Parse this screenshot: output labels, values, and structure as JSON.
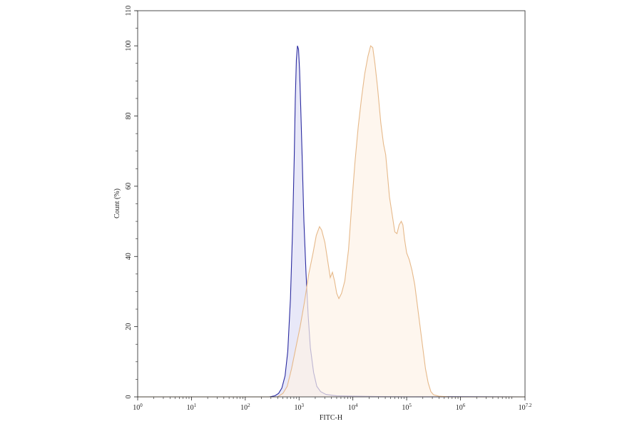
{
  "chart_data": {
    "type": "area",
    "xlabel": "FITC-H",
    "ylabel": "Count (%)",
    "xscale": "log",
    "xlim_log10": [
      0,
      7.2
    ],
    "ylim": [
      0,
      110
    ],
    "grid": false,
    "legend": "none",
    "x_ticks": [
      {
        "exp": 0,
        "base": "10",
        "sup": "0"
      },
      {
        "exp": 1,
        "base": "10",
        "sup": "1"
      },
      {
        "exp": 2,
        "base": "10",
        "sup": "2"
      },
      {
        "exp": 3,
        "base": "10",
        "sup": "3"
      },
      {
        "exp": 4,
        "base": "10",
        "sup": "4"
      },
      {
        "exp": 5,
        "base": "10",
        "sup": "5"
      },
      {
        "exp": 6,
        "base": "10",
        "sup": "6"
      },
      {
        "exp": 7.2,
        "base": "10",
        "sup": "7.2"
      }
    ],
    "y_ticks": [
      {
        "value": 0,
        "label": "0"
      },
      {
        "value": 20,
        "label": "20"
      },
      {
        "value": 40,
        "label": "40"
      },
      {
        "value": 60,
        "label": "60"
      },
      {
        "value": 80,
        "label": "80"
      },
      {
        "value": 100,
        "label": "100"
      },
      {
        "value": 110,
        "label": "110"
      }
    ],
    "series": [
      {
        "stroke": "#2a2aa0",
        "fill": "#e4e4f7",
        "points_log10x": [
          [
            0,
            0
          ],
          [
            2.45,
            0
          ],
          [
            2.55,
            0.3
          ],
          [
            2.62,
            1
          ],
          [
            2.68,
            2.5
          ],
          [
            2.74,
            6
          ],
          [
            2.79,
            13
          ],
          [
            2.84,
            28
          ],
          [
            2.88,
            48
          ],
          [
            2.91,
            68
          ],
          [
            2.93,
            85
          ],
          [
            2.95,
            96
          ],
          [
            2.97,
            100
          ],
          [
            2.99,
            99
          ],
          [
            3.01,
            93
          ],
          [
            3.03,
            83
          ],
          [
            3.06,
            67
          ],
          [
            3.09,
            50
          ],
          [
            3.13,
            35
          ],
          [
            3.17,
            23
          ],
          [
            3.21,
            14
          ],
          [
            3.27,
            7
          ],
          [
            3.33,
            3
          ],
          [
            3.4,
            1.5
          ],
          [
            3.5,
            0.7
          ],
          [
            3.7,
            0.3
          ],
          [
            4.0,
            0.2
          ],
          [
            4.5,
            0.1
          ],
          [
            5.0,
            0.05
          ],
          [
            7.2,
            0
          ]
        ]
      },
      {
        "stroke": "#e6b98a",
        "fill": "#fdf2e7",
        "points_log10x": [
          [
            0,
            0
          ],
          [
            2.6,
            0
          ],
          [
            2.7,
            1
          ],
          [
            2.78,
            3
          ],
          [
            2.86,
            8
          ],
          [
            2.94,
            14
          ],
          [
            3.02,
            20
          ],
          [
            3.1,
            27
          ],
          [
            3.18,
            35
          ],
          [
            3.26,
            41
          ],
          [
            3.32,
            46
          ],
          [
            3.38,
            48.5
          ],
          [
            3.42,
            47.5
          ],
          [
            3.48,
            44
          ],
          [
            3.54,
            38
          ],
          [
            3.58,
            34
          ],
          [
            3.62,
            35.5
          ],
          [
            3.66,
            33
          ],
          [
            3.7,
            29.5
          ],
          [
            3.74,
            28
          ],
          [
            3.79,
            29.5
          ],
          [
            3.85,
            33
          ],
          [
            3.92,
            42
          ],
          [
            3.98,
            55
          ],
          [
            4.04,
            67
          ],
          [
            4.1,
            77
          ],
          [
            4.16,
            85
          ],
          [
            4.22,
            92
          ],
          [
            4.28,
            97
          ],
          [
            4.33,
            100
          ],
          [
            4.37,
            99.5
          ],
          [
            4.41,
            95
          ],
          [
            4.46,
            88
          ],
          [
            4.52,
            78
          ],
          [
            4.57,
            72
          ],
          [
            4.61,
            69
          ],
          [
            4.64,
            64
          ],
          [
            4.68,
            57
          ],
          [
            4.72,
            53
          ],
          [
            4.78,
            47
          ],
          [
            4.82,
            46.5
          ],
          [
            4.86,
            49
          ],
          [
            4.9,
            50
          ],
          [
            4.93,
            49
          ],
          [
            4.96,
            45
          ],
          [
            5.0,
            41
          ],
          [
            5.05,
            39
          ],
          [
            5.1,
            36
          ],
          [
            5.15,
            32
          ],
          [
            5.2,
            26
          ],
          [
            5.25,
            20
          ],
          [
            5.3,
            14
          ],
          [
            5.35,
            8
          ],
          [
            5.4,
            4
          ],
          [
            5.45,
            1.5
          ],
          [
            5.5,
            0.6
          ],
          [
            5.6,
            0.2
          ],
          [
            5.8,
            0
          ],
          [
            7.2,
            0
          ]
        ]
      }
    ]
  }
}
